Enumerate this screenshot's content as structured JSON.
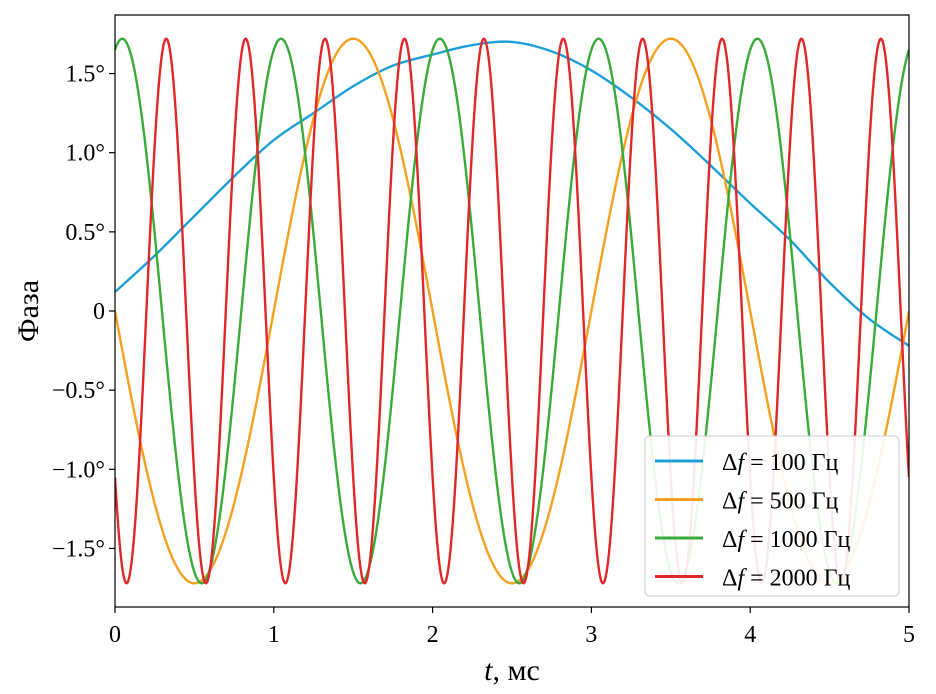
{
  "chart_data": {
    "type": "line",
    "title": "",
    "xlabel_italic": "t",
    "xlabel_rest": ", мс",
    "ylabel": "Фаза",
    "xlim": [
      0,
      5
    ],
    "ylim": [
      -1.87,
      1.87
    ],
    "x_ticks": [
      0,
      1,
      2,
      3,
      4,
      5
    ],
    "x_tick_labels": [
      "0",
      "1",
      "2",
      "3",
      "4",
      "5"
    ],
    "y_ticks": [
      1.5,
      1.0,
      0.5,
      0,
      -0.5,
      -1.0,
      -1.5
    ],
    "y_tick_labels": [
      "1.5°",
      "1.0°",
      "0.5°",
      "0",
      "−0.5°",
      "−1.0°",
      "−1.5°"
    ],
    "grid": false,
    "legend_position": "lower-right",
    "amplitude": 1.72,
    "series": [
      {
        "name": "Δf = 100 Гц",
        "legend_parts": [
          "Δ",
          "f",
          " = 100 Гц"
        ],
        "color": "#1f9fd8",
        "frequency_hz": 100,
        "x": [
          0,
          0.25,
          0.5,
          0.75,
          1.0,
          1.25,
          1.5,
          1.75,
          2.0,
          2.25,
          2.5,
          2.75,
          3.0,
          3.25,
          3.5,
          3.75,
          4.0,
          4.25,
          4.5,
          4.75,
          5.0
        ],
        "y": [
          0.12,
          0.35,
          0.6,
          0.85,
          1.08,
          1.25,
          1.42,
          1.55,
          1.62,
          1.68,
          1.7,
          1.64,
          1.52,
          1.35,
          1.15,
          0.92,
          0.68,
          0.45,
          0.18,
          -0.05,
          -0.22
        ]
      },
      {
        "name": "Δf = 500 Гц",
        "legend_parts": [
          "Δ",
          "f",
          " = 500 Гц"
        ],
        "color": "#f5a020",
        "frequency_hz": 500,
        "x": [
          0,
          0.25,
          0.5,
          0.75,
          1.0,
          1.25,
          1.5,
          1.75,
          2.0,
          2.25,
          2.5,
          2.75,
          3.0,
          3.25,
          3.5,
          3.75,
          4.0,
          4.25,
          4.5,
          4.75,
          5.0
        ],
        "y": [
          0.0,
          -1.22,
          -1.72,
          -1.22,
          0.0,
          1.22,
          1.72,
          1.22,
          0.0,
          -1.22,
          -1.72,
          -1.22,
          0.0,
          1.22,
          1.72,
          1.22,
          0.0,
          -1.22,
          -1.72,
          -1.22,
          0.0
        ]
      },
      {
        "name": "Δf = 1000 Гц",
        "legend_parts": [
          "Δ",
          "f",
          " = 1000 Гц"
        ],
        "color": "#3aab3a",
        "frequency_hz": 1000,
        "x": [
          0,
          0.25,
          0.5,
          0.75,
          1.0,
          1.25,
          1.5,
          1.75,
          2.0,
          2.25,
          2.5,
          2.75,
          3.0,
          3.25,
          3.5,
          3.75,
          4.0,
          4.25,
          4.5,
          4.75,
          5.0
        ],
        "y": [
          1.65,
          0.3,
          -1.65,
          -0.3,
          1.65,
          0.3,
          -1.65,
          -0.3,
          1.65,
          0.3,
          -1.65,
          -0.3,
          1.65,
          0.3,
          -1.65,
          -0.3,
          1.65,
          0.3,
          -1.65,
          -0.3,
          1.65
        ]
      },
      {
        "name": "Δf = 2000 Гц",
        "legend_parts": [
          "Δ",
          "f",
          " = 2000 Гц"
        ],
        "color": "#e0282a",
        "frequency_hz": 2000,
        "x": [
          0,
          0.125,
          0.25,
          0.375,
          0.5,
          0.625,
          0.75,
          0.875,
          1.0,
          1.125,
          1.25,
          1.375,
          1.5,
          1.625,
          1.75,
          1.875,
          2.0,
          2.125,
          2.25,
          2.375,
          2.5,
          2.625,
          2.75,
          2.875,
          3.0,
          3.125,
          3.25,
          3.375,
          3.5,
          3.625,
          3.75,
          3.875,
          4.0,
          4.125,
          4.25,
          4.375,
          4.5,
          4.625,
          4.75,
          4.875,
          5.0
        ],
        "y": [
          -1.05,
          -1.36,
          1.05,
          1.36,
          -1.05,
          -1.36,
          1.05,
          1.36,
          -1.05,
          -1.36,
          1.05,
          1.36,
          -1.05,
          -1.36,
          1.05,
          1.36,
          -1.05,
          -1.36,
          1.05,
          1.36,
          -1.05,
          -1.36,
          1.05,
          1.36,
          -1.05,
          -1.36,
          1.05,
          1.36,
          -1.05,
          -1.36,
          1.05,
          1.36,
          -1.05,
          -1.36,
          1.05,
          1.36,
          -1.05,
          -1.36,
          1.05,
          1.36,
          -1.05
        ]
      }
    ]
  }
}
